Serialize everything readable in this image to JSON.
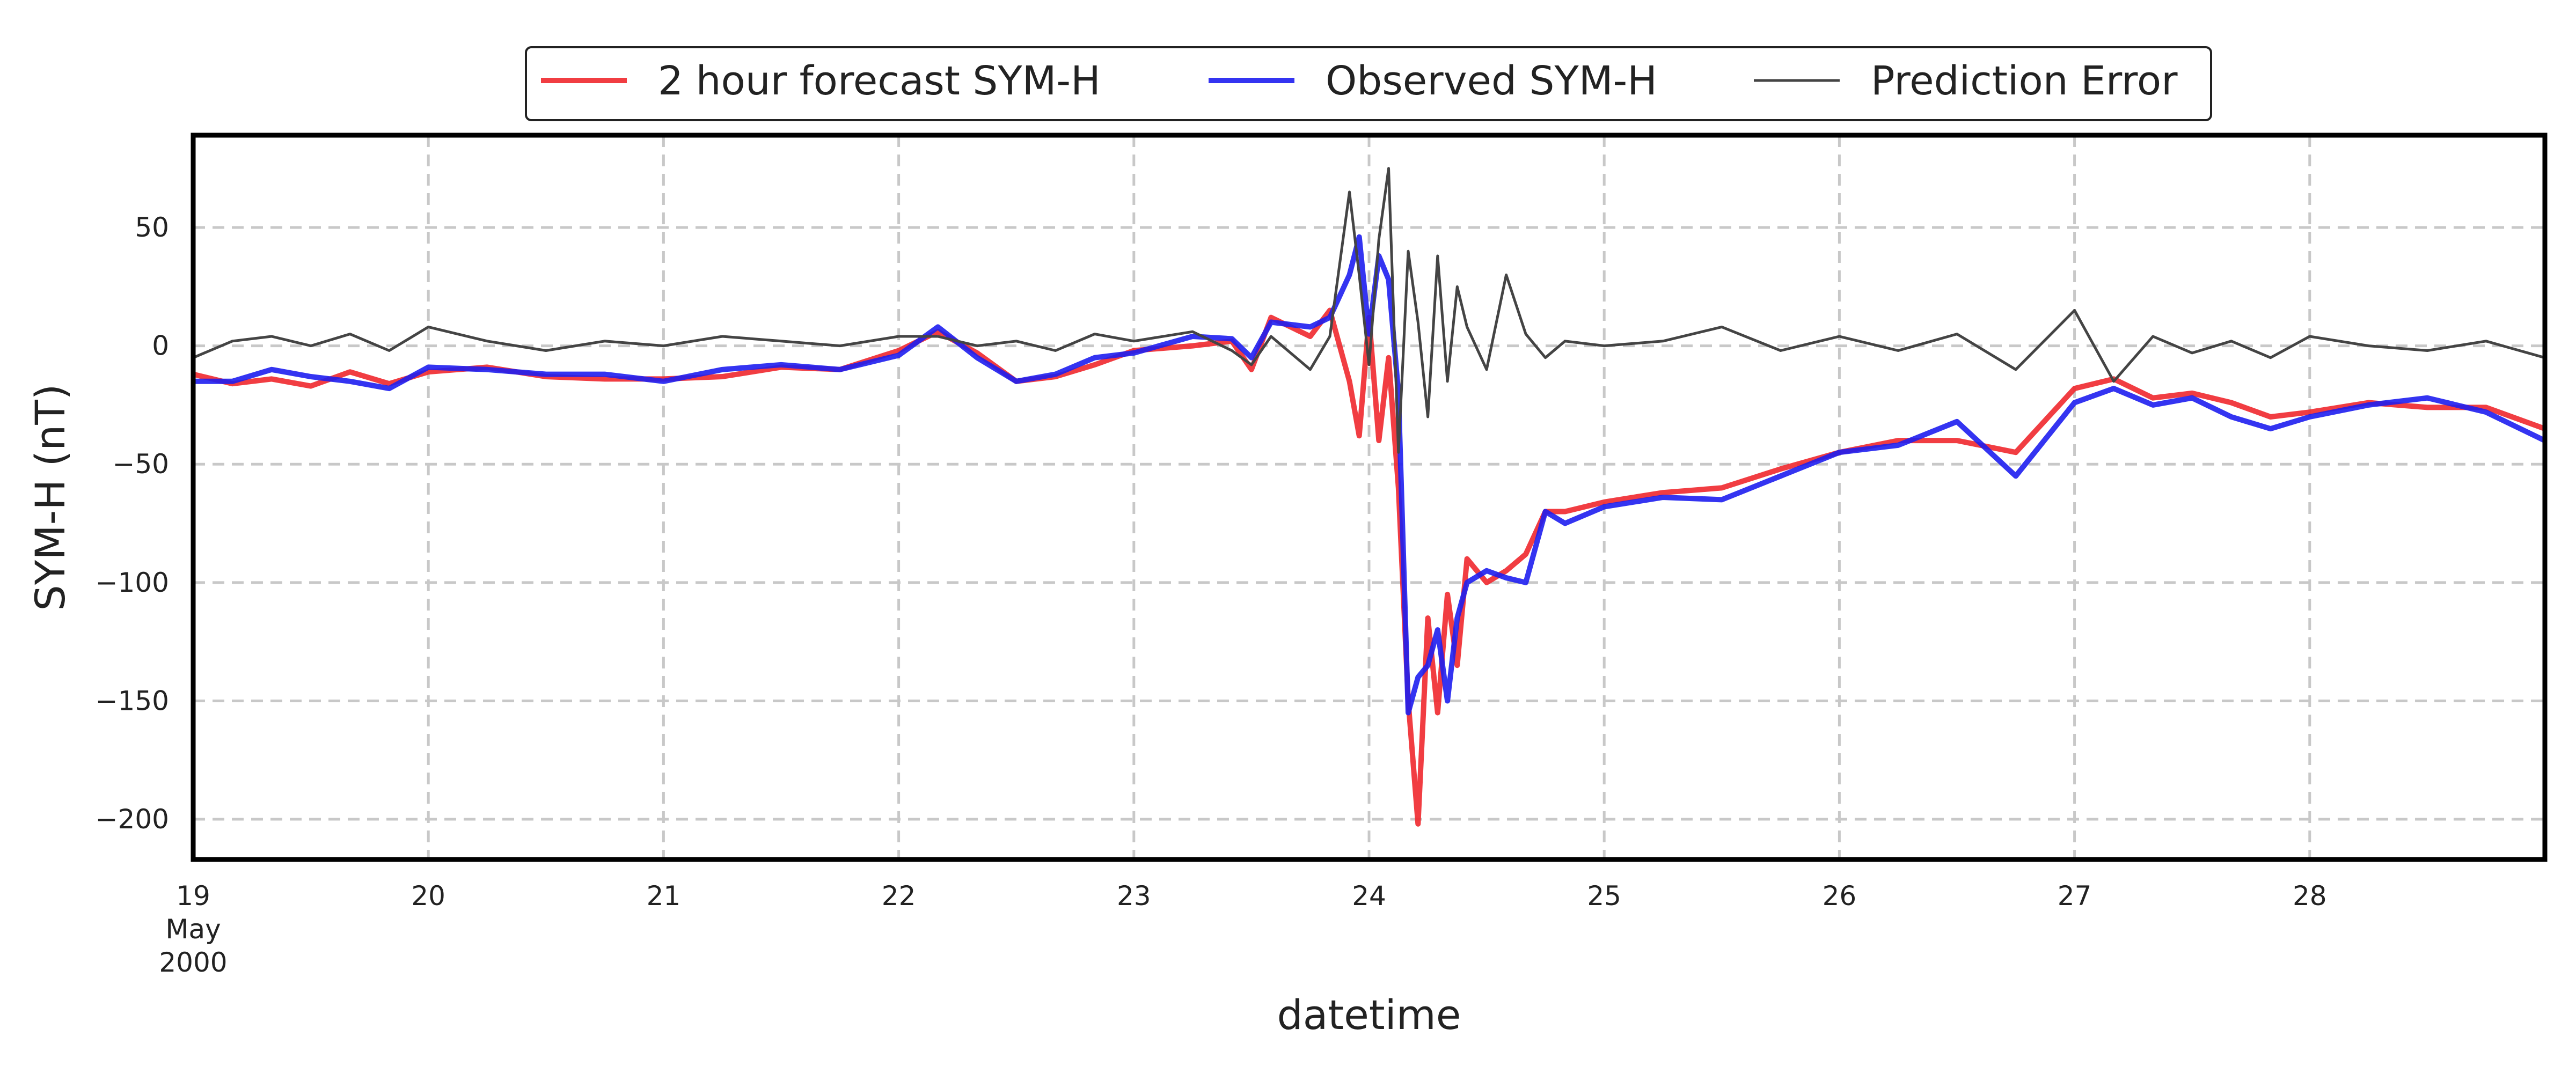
{
  "chart_data": {
    "type": "line",
    "xlabel": "datetime",
    "ylabel": "SYM-H (nT)",
    "xlim": [
      "2000-05-19",
      "2000-05-29"
    ],
    "ylim": [
      -217,
      89
    ],
    "grid": true,
    "legend_position": "top-center",
    "yticks": [
      50,
      0,
      -50,
      -100,
      -150,
      -200
    ],
    "ytick_labels": [
      "50",
      "0",
      "−50",
      "−100",
      "−150",
      "−200"
    ],
    "xticks": [
      "2000-05-19",
      "2000-05-20",
      "2000-05-21",
      "2000-05-22",
      "2000-05-23",
      "2000-05-24",
      "2000-05-25",
      "2000-05-26",
      "2000-05-27",
      "2000-05-28"
    ],
    "xtick_labels": [
      "19",
      "20",
      "21",
      "22",
      "23",
      "24",
      "25",
      "26",
      "27",
      "28"
    ],
    "xtick_first_sublabels": [
      "May",
      "2000"
    ],
    "series": [
      {
        "name": "2 hour forecast SYM-H",
        "color": "#f0282d",
        "x": [
          "2000-05-19T00:00",
          "2000-05-19T04:00",
          "2000-05-19T08:00",
          "2000-05-19T12:00",
          "2000-05-19T16:00",
          "2000-05-19T20:00",
          "2000-05-20T00:00",
          "2000-05-20T06:00",
          "2000-05-20T12:00",
          "2000-05-20T18:00",
          "2000-05-21T00:00",
          "2000-05-21T06:00",
          "2000-05-21T12:00",
          "2000-05-21T18:00",
          "2000-05-22T00:00",
          "2000-05-22T04:00",
          "2000-05-22T08:00",
          "2000-05-22T12:00",
          "2000-05-22T16:00",
          "2000-05-22T20:00",
          "2000-05-23T00:00",
          "2000-05-23T06:00",
          "2000-05-23T10:00",
          "2000-05-23T12:00",
          "2000-05-23T14:00",
          "2000-05-23T18:00",
          "2000-05-23T20:00",
          "2000-05-23T22:00",
          "2000-05-23T23:00",
          "2000-05-24T00:00",
          "2000-05-24T01:00",
          "2000-05-24T02:00",
          "2000-05-24T03:00",
          "2000-05-24T04:00",
          "2000-05-24T05:00",
          "2000-05-24T06:00",
          "2000-05-24T07:00",
          "2000-05-24T08:00",
          "2000-05-24T09:00",
          "2000-05-24T10:00",
          "2000-05-24T12:00",
          "2000-05-24T14:00",
          "2000-05-24T16:00",
          "2000-05-24T18:00",
          "2000-05-24T20:00",
          "2000-05-25T00:00",
          "2000-05-25T06:00",
          "2000-05-25T12:00",
          "2000-05-25T18:00",
          "2000-05-26T00:00",
          "2000-05-26T06:00",
          "2000-05-26T12:00",
          "2000-05-26T18:00",
          "2000-05-27T00:00",
          "2000-05-27T04:00",
          "2000-05-27T08:00",
          "2000-05-27T12:00",
          "2000-05-27T16:00",
          "2000-05-27T20:00",
          "2000-05-28T00:00",
          "2000-05-28T06:00",
          "2000-05-28T12:00",
          "2000-05-28T18:00",
          "2000-05-28T23:59"
        ],
        "values": [
          -12,
          -16,
          -14,
          -17,
          -11,
          -16,
          -11,
          -9,
          -13,
          -14,
          -14,
          -13,
          -9,
          -10,
          -2,
          6,
          -3,
          -15,
          -13,
          -8,
          -2,
          0,
          2,
          -10,
          12,
          4,
          15,
          -15,
          -38,
          12,
          -40,
          -5,
          -60,
          -150,
          -202,
          -115,
          -155,
          -105,
          -135,
          -90,
          -100,
          -95,
          -88,
          -70,
          -70,
          -66,
          -62,
          -60,
          -52,
          -45,
          -40,
          -40,
          -45,
          -18,
          -14,
          -22,
          -20,
          -24,
          -30,
          -28,
          -24,
          -26,
          -26,
          -35
        ]
      },
      {
        "name": "Observed SYM-H",
        "color": "#1e1ef0",
        "x": [
          "2000-05-19T00:00",
          "2000-05-19T04:00",
          "2000-05-19T08:00",
          "2000-05-19T12:00",
          "2000-05-19T16:00",
          "2000-05-19T20:00",
          "2000-05-20T00:00",
          "2000-05-20T06:00",
          "2000-05-20T12:00",
          "2000-05-20T18:00",
          "2000-05-21T00:00",
          "2000-05-21T06:00",
          "2000-05-21T12:00",
          "2000-05-21T18:00",
          "2000-05-22T00:00",
          "2000-05-22T04:00",
          "2000-05-22T08:00",
          "2000-05-22T12:00",
          "2000-05-22T16:00",
          "2000-05-22T20:00",
          "2000-05-23T00:00",
          "2000-05-23T06:00",
          "2000-05-23T10:00",
          "2000-05-23T12:00",
          "2000-05-23T14:00",
          "2000-05-23T18:00",
          "2000-05-23T20:00",
          "2000-05-23T22:00",
          "2000-05-23T23:00",
          "2000-05-24T00:00",
          "2000-05-24T01:00",
          "2000-05-24T02:00",
          "2000-05-24T03:00",
          "2000-05-24T04:00",
          "2000-05-24T05:00",
          "2000-05-24T06:00",
          "2000-05-24T07:00",
          "2000-05-24T08:00",
          "2000-05-24T09:00",
          "2000-05-24T10:00",
          "2000-05-24T12:00",
          "2000-05-24T14:00",
          "2000-05-24T16:00",
          "2000-05-24T18:00",
          "2000-05-24T20:00",
          "2000-05-25T00:00",
          "2000-05-25T06:00",
          "2000-05-25T12:00",
          "2000-05-25T18:00",
          "2000-05-26T00:00",
          "2000-05-26T06:00",
          "2000-05-26T12:00",
          "2000-05-26T18:00",
          "2000-05-27T00:00",
          "2000-05-27T04:00",
          "2000-05-27T08:00",
          "2000-05-27T12:00",
          "2000-05-27T16:00",
          "2000-05-27T20:00",
          "2000-05-28T00:00",
          "2000-05-28T06:00",
          "2000-05-28T12:00",
          "2000-05-28T18:00",
          "2000-05-28T23:59"
        ],
        "values": [
          -15,
          -15,
          -10,
          -13,
          -15,
          -18,
          -9,
          -10,
          -12,
          -12,
          -15,
          -10,
          -8,
          -10,
          -4,
          8,
          -5,
          -15,
          -12,
          -5,
          -3,
          4,
          3,
          -5,
          10,
          8,
          12,
          30,
          46,
          5,
          38,
          28,
          -20,
          -155,
          -140,
          -135,
          -120,
          -150,
          -115,
          -100,
          -95,
          -98,
          -100,
          -70,
          -75,
          -68,
          -64,
          -65,
          -55,
          -45,
          -42,
          -32,
          -55,
          -24,
          -18,
          -25,
          -22,
          -30,
          -35,
          -30,
          -25,
          -22,
          -28,
          -40
        ]
      },
      {
        "name": "Prediction Error",
        "color": "#444444",
        "x": [
          "2000-05-19T00:00",
          "2000-05-19T04:00",
          "2000-05-19T08:00",
          "2000-05-19T12:00",
          "2000-05-19T16:00",
          "2000-05-19T20:00",
          "2000-05-20T00:00",
          "2000-05-20T06:00",
          "2000-05-20T12:00",
          "2000-05-20T18:00",
          "2000-05-21T00:00",
          "2000-05-21T06:00",
          "2000-05-21T12:00",
          "2000-05-21T18:00",
          "2000-05-22T00:00",
          "2000-05-22T04:00",
          "2000-05-22T08:00",
          "2000-05-22T12:00",
          "2000-05-22T16:00",
          "2000-05-22T20:00",
          "2000-05-23T00:00",
          "2000-05-23T06:00",
          "2000-05-23T10:00",
          "2000-05-23T12:00",
          "2000-05-23T14:00",
          "2000-05-23T18:00",
          "2000-05-23T20:00",
          "2000-05-23T22:00",
          "2000-05-23T23:00",
          "2000-05-24T00:00",
          "2000-05-24T01:00",
          "2000-05-24T02:00",
          "2000-05-24T03:00",
          "2000-05-24T04:00",
          "2000-05-24T05:00",
          "2000-05-24T06:00",
          "2000-05-24T07:00",
          "2000-05-24T08:00",
          "2000-05-24T09:00",
          "2000-05-24T10:00",
          "2000-05-24T12:00",
          "2000-05-24T14:00",
          "2000-05-24T16:00",
          "2000-05-24T18:00",
          "2000-05-24T20:00",
          "2000-05-25T00:00",
          "2000-05-25T06:00",
          "2000-05-25T12:00",
          "2000-05-25T18:00",
          "2000-05-26T00:00",
          "2000-05-26T06:00",
          "2000-05-26T12:00",
          "2000-05-26T18:00",
          "2000-05-27T00:00",
          "2000-05-27T04:00",
          "2000-05-27T08:00",
          "2000-05-27T12:00",
          "2000-05-27T16:00",
          "2000-05-27T20:00",
          "2000-05-28T00:00",
          "2000-05-28T06:00",
          "2000-05-28T12:00",
          "2000-05-28T18:00",
          "2000-05-28T23:59"
        ],
        "values": [
          -5,
          2,
          4,
          0,
          5,
          -2,
          8,
          2,
          -2,
          2,
          0,
          4,
          2,
          0,
          4,
          4,
          0,
          2,
          -2,
          5,
          2,
          6,
          -2,
          -8,
          4,
          -10,
          4,
          65,
          30,
          -8,
          45,
          75,
          -45,
          40,
          10,
          -30,
          38,
          -15,
          25,
          8,
          -10,
          30,
          5,
          -5,
          2,
          0,
          2,
          8,
          -2,
          4,
          -2,
          5,
          -10,
          15,
          -15,
          4,
          -3,
          2,
          -5,
          4,
          0,
          -2,
          2,
          -5
        ]
      }
    ]
  }
}
